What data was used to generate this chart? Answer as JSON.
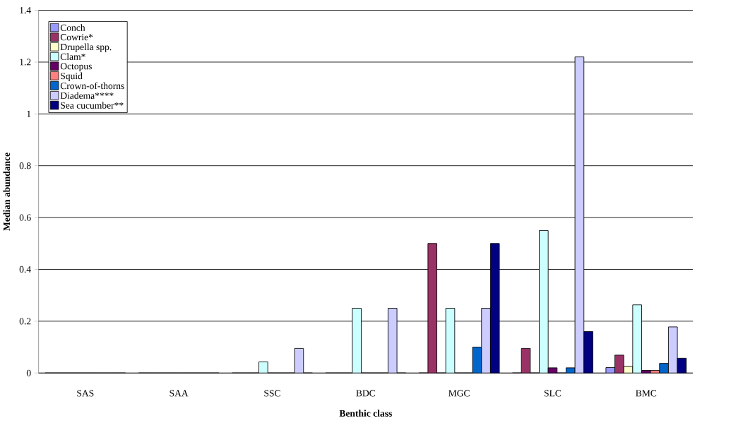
{
  "chart_data": {
    "type": "bar",
    "xlabel": "Benthic class",
    "ylabel": "Median abundance",
    "categories": [
      "SAS",
      "SAA",
      "SSC",
      "BDC",
      "MGC",
      "SLC",
      "BMC"
    ],
    "series": [
      {
        "name": "Conch",
        "color": "#9999ff",
        "values": [
          0,
          0,
          0,
          0,
          0,
          0,
          0.021
        ]
      },
      {
        "name": "Cowrie*",
        "color": "#993366",
        "values": [
          0,
          0,
          0,
          0,
          0.5,
          0.095,
          0.069
        ]
      },
      {
        "name": "Drupella spp.",
        "color": "#ffffcc",
        "values": [
          0,
          0,
          0,
          0,
          0,
          0,
          0.026
        ]
      },
      {
        "name": "Clam*",
        "color": "#ccffff",
        "values": [
          0,
          0,
          0.043,
          0.25,
          0.25,
          0.55,
          0.263
        ]
      },
      {
        "name": "Octopus",
        "color": "#660066",
        "values": [
          0,
          0,
          0,
          0,
          0,
          0.02,
          0.01
        ]
      },
      {
        "name": "Squid",
        "color": "#ff8080",
        "values": [
          0,
          0,
          0,
          0,
          0,
          0,
          0.01
        ]
      },
      {
        "name": "Crown-of-thorns",
        "color": "#0066cc",
        "values": [
          0,
          0,
          0,
          0,
          0.1,
          0.02,
          0.037
        ]
      },
      {
        "name": "Diadema****",
        "color": "#ccccff",
        "values": [
          0,
          0,
          0.095,
          0.25,
          0.25,
          1.22,
          0.178
        ]
      },
      {
        "name": "Sea cucumber**",
        "color": "#000080",
        "values": [
          0,
          0,
          0,
          0,
          0.5,
          0.16,
          0.057
        ]
      }
    ],
    "ylim": [
      0,
      1.4
    ],
    "yticks": [
      0,
      0.2,
      0.4,
      0.6,
      0.8,
      1,
      1.2,
      1.4
    ],
    "grid": "y",
    "legend": "top left"
  }
}
